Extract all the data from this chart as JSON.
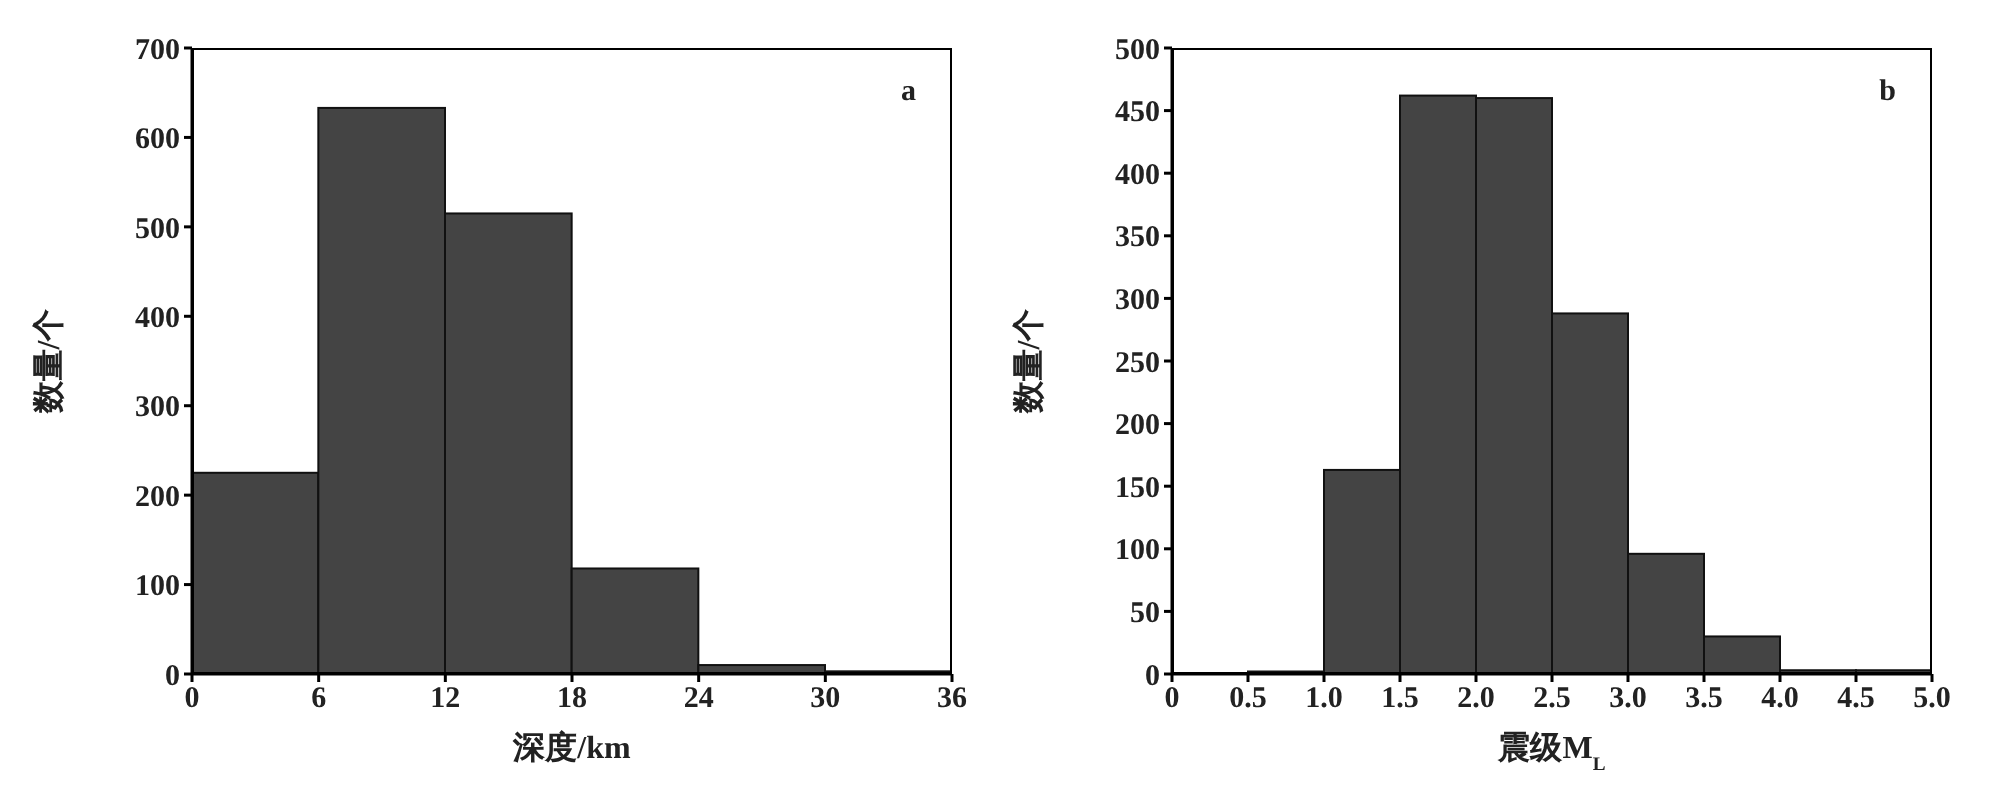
{
  "chart_data": [
    {
      "type": "histogram",
      "bins": [
        0,
        6,
        12,
        18,
        24,
        30,
        36
      ],
      "values": [
        225,
        633,
        515,
        118,
        10,
        3
      ],
      "color": "#444444",
      "xlabel": "深度/km",
      "ylabel": "数量/个",
      "xlim": [
        0,
        36
      ],
      "xticks": [
        0,
        6,
        12,
        18,
        24,
        30,
        36
      ],
      "ylim": [
        0,
        700
      ],
      "yticks": [
        0,
        100,
        200,
        300,
        400,
        500,
        600,
        700
      ],
      "annotations": [
        "a"
      ]
    },
    {
      "type": "histogram",
      "bins": [
        0,
        0.5,
        1,
        1.5,
        2,
        2.5,
        3,
        3.5,
        4,
        4.5,
        5
      ],
      "values": [
        null,
        2,
        163,
        462,
        460,
        288,
        96,
        30,
        3,
        3
      ],
      "color": "#444444",
      "xlabel": "震级M$_{L}$",
      "ylabel": "数量/个",
      "xlim": [
        0,
        5
      ],
      "xticks": [
        {
          "value": 0,
          "label": "0"
        },
        0.5,
        {
          "value": 1,
          "label": "1.0"
        },
        1.5,
        {
          "value": 2,
          "label": "2.0"
        },
        2.5,
        {
          "value": 3,
          "label": "3.0"
        },
        3.5,
        {
          "value": 4,
          "label": "4.0"
        },
        4.5,
        {
          "value": 5,
          "label": "5.0"
        }
      ],
      "ylim": [
        0,
        500
      ],
      "yticks": [
        0,
        50,
        100,
        150,
        200,
        250,
        300,
        350,
        400,
        450,
        500
      ],
      "annotations": [
        "b"
      ]
    }
  ]
}
